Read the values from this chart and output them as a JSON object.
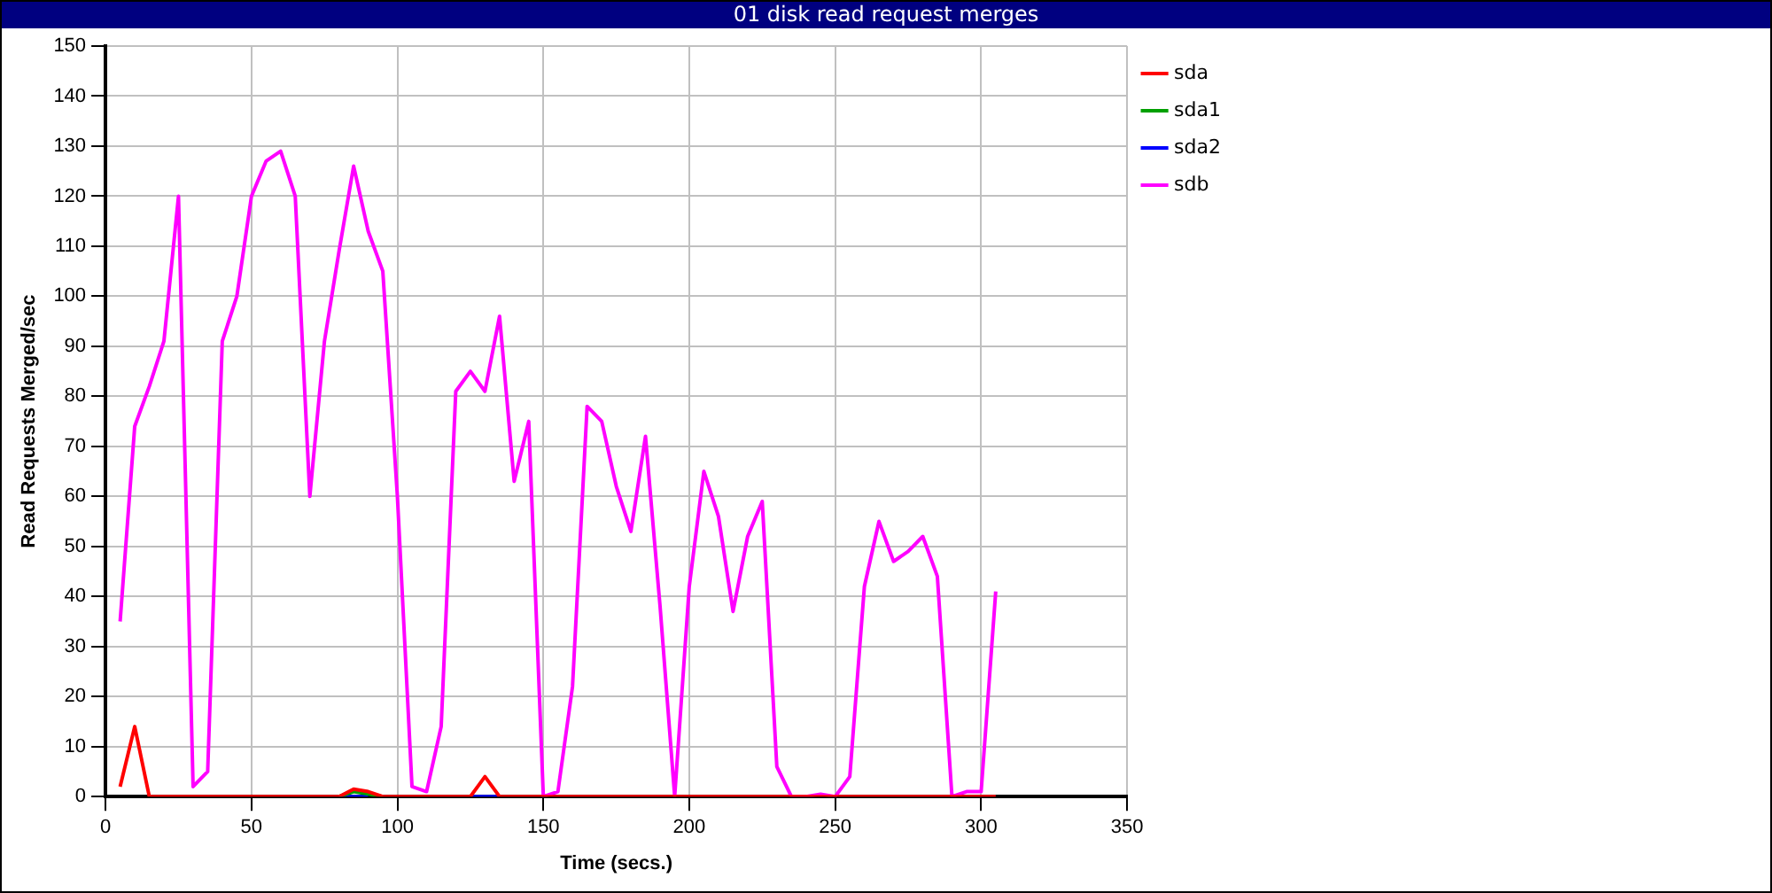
{
  "chart_data": {
    "type": "line",
    "title": "01 disk read request merges",
    "xlabel": "Time (secs.)",
    "ylabel": "Read Requests Merged/sec",
    "x": [
      5,
      10,
      15,
      20,
      25,
      30,
      35,
      40,
      45,
      50,
      55,
      60,
      65,
      70,
      75,
      80,
      85,
      90,
      95,
      100,
      105,
      110,
      115,
      120,
      125,
      130,
      135,
      140,
      145,
      150,
      155,
      160,
      165,
      170,
      175,
      180,
      185,
      190,
      195,
      200,
      205,
      210,
      215,
      220,
      225,
      230,
      235,
      240,
      245,
      250,
      255,
      260,
      265,
      270,
      275,
      280,
      285,
      290,
      295,
      300,
      305
    ],
    "series": [
      {
        "name": "sda",
        "color": "#ff0000",
        "values": [
          2,
          14,
          0,
          0,
          0,
          0,
          0,
          0,
          0,
          0,
          0,
          0,
          0,
          0,
          0,
          0,
          1.5,
          1,
          0,
          0,
          0,
          0,
          0,
          0,
          0,
          4,
          0,
          0,
          0,
          0,
          0,
          0,
          0,
          0,
          0,
          0,
          0,
          0,
          0,
          0,
          0,
          0,
          0,
          0,
          0,
          0,
          0,
          0,
          0,
          0,
          0,
          0,
          0,
          0,
          0,
          0,
          0,
          0,
          0,
          0,
          0
        ]
      },
      {
        "name": "sda1",
        "color": "#00a000",
        "values": [
          null,
          null,
          null,
          null,
          null,
          null,
          null,
          null,
          null,
          null,
          null,
          null,
          null,
          null,
          null,
          0,
          1,
          0.5,
          0,
          null,
          null,
          null,
          null,
          null,
          null,
          null,
          null,
          null,
          null,
          null,
          null,
          null,
          null,
          null,
          null,
          null,
          null,
          null,
          null,
          null,
          null,
          null,
          null,
          null,
          null,
          null,
          null,
          null,
          null,
          null,
          null,
          null,
          null,
          null,
          null,
          null,
          null,
          null,
          null,
          null,
          null
        ]
      },
      {
        "name": "sda2",
        "color": "#0000ff",
        "values": [
          null,
          null,
          null,
          null,
          null,
          null,
          null,
          null,
          null,
          null,
          null,
          null,
          null,
          null,
          null,
          0,
          0,
          0,
          null,
          null,
          null,
          null,
          null,
          null,
          0,
          0,
          0,
          null,
          null,
          null,
          null,
          null,
          null,
          null,
          null,
          null,
          null,
          null,
          null,
          null,
          null,
          null,
          null,
          null,
          null,
          null,
          null,
          null,
          null,
          null,
          null,
          null,
          null,
          null,
          null,
          null,
          null,
          null,
          null,
          null,
          null
        ]
      },
      {
        "name": "sdb",
        "color": "#ff00ff",
        "values": [
          35,
          74,
          82,
          91,
          120,
          2,
          5,
          91,
          100,
          120,
          127,
          129,
          120,
          60,
          91,
          109,
          126,
          113,
          105,
          60,
          2,
          1,
          14,
          81,
          85,
          81,
          96,
          63,
          75,
          0,
          1,
          22,
          78,
          75,
          62,
          53,
          72,
          38,
          0,
          42,
          65,
          56,
          37,
          52,
          59,
          6,
          0,
          0,
          0.5,
          0,
          4,
          42,
          55,
          47,
          49,
          52,
          44,
          0,
          1,
          1,
          41
        ]
      }
    ],
    "xlim": [
      0,
      350
    ],
    "xticks": [
      0,
      50,
      100,
      150,
      200,
      250,
      300,
      350
    ],
    "ylim": [
      0,
      150
    ],
    "yticks": [
      0,
      10,
      20,
      30,
      40,
      50,
      60,
      70,
      80,
      90,
      100,
      110,
      120,
      130,
      140,
      150
    ],
    "grid": true,
    "legend": "right",
    "marker": "none",
    "line_style": "solid"
  }
}
